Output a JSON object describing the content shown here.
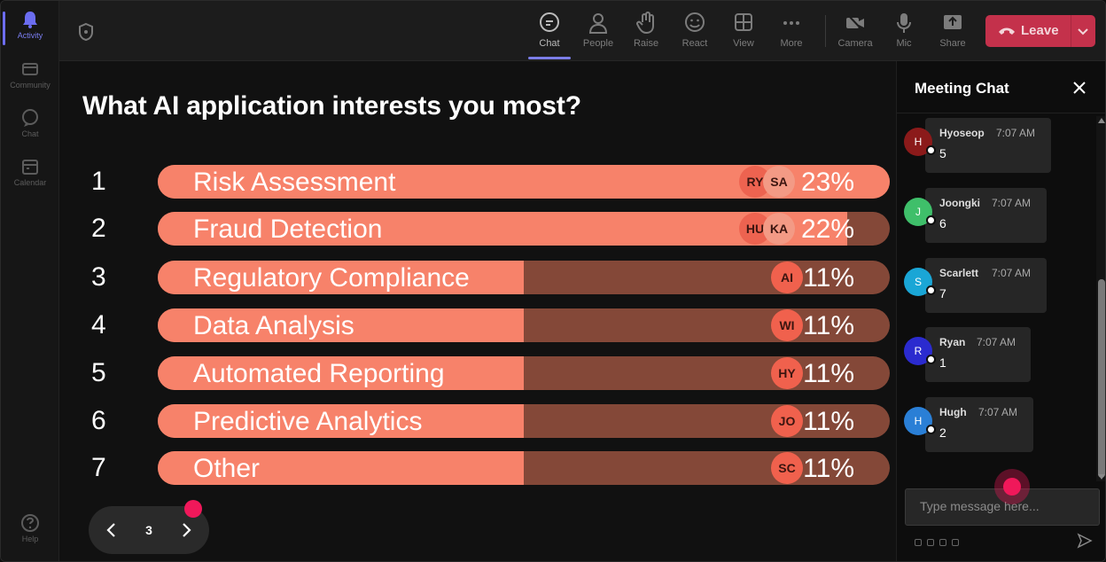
{
  "rail": {
    "items": [
      {
        "label": "Activity",
        "icon": "bell-icon",
        "active": true
      },
      {
        "label": "Community",
        "icon": "community-icon"
      },
      {
        "label": "Chat",
        "icon": "chat-icon"
      },
      {
        "label": "Calendar",
        "icon": "calendar-icon"
      }
    ],
    "help_label": "Help"
  },
  "toolbar": {
    "chat": "Chat",
    "people": "People",
    "raise": "Raise",
    "react": "React",
    "view": "View",
    "more": "More",
    "camera": "Camera",
    "mic": "Mic",
    "share": "Share",
    "leave": "Leave",
    "leave_color": "#c4314b"
  },
  "poll": {
    "question": "What AI application interests you most?",
    "bar_color": "#f7826a",
    "track_color": "#844838",
    "options": [
      {
        "num": "1",
        "label": "Risk Assessment",
        "pct": "23%",
        "value": 23,
        "avatars": [
          "RY",
          "SA"
        ]
      },
      {
        "num": "2",
        "label": "Fraud Detection",
        "pct": "22%",
        "value": 22,
        "avatars": [
          "HU",
          "KA"
        ]
      },
      {
        "num": "3",
        "label": "Regulatory Compliance",
        "pct": "11%",
        "value": 11,
        "avatars": [
          "AI"
        ]
      },
      {
        "num": "4",
        "label": "Data Analysis",
        "pct": "11%",
        "value": 11,
        "avatars": [
          "WI"
        ]
      },
      {
        "num": "5",
        "label": "Automated Reporting",
        "pct": "11%",
        "value": 11,
        "avatars": [
          "HY"
        ]
      },
      {
        "num": "6",
        "label": "Predictive Analytics",
        "pct": "11%",
        "value": 11,
        "avatars": [
          "JO"
        ]
      },
      {
        "num": "7",
        "label": "Other",
        "pct": "11%",
        "value": 11,
        "avatars": [
          "SC"
        ]
      }
    ],
    "page": "3"
  },
  "chat": {
    "title": "Meeting Chat",
    "placeholder": "Type message here...",
    "messages": [
      {
        "initial": "H",
        "name": "Hyoseop",
        "time": "7:07 AM",
        "text": "5",
        "color": "#8b1a1a"
      },
      {
        "initial": "J",
        "name": "Joongki",
        "time": "7:07 AM",
        "text": "6",
        "color": "#3fbf6a"
      },
      {
        "initial": "S",
        "name": "Scarlett",
        "time": "7:07 AM",
        "text": "7",
        "color": "#1aa6d6"
      },
      {
        "initial": "R",
        "name": "Ryan",
        "time": "7:07 AM",
        "text": "1",
        "color": "#2b2bcf"
      },
      {
        "initial": "H",
        "name": "Hugh",
        "time": "7:07 AM",
        "text": "2",
        "color": "#2a7fd6"
      }
    ]
  }
}
